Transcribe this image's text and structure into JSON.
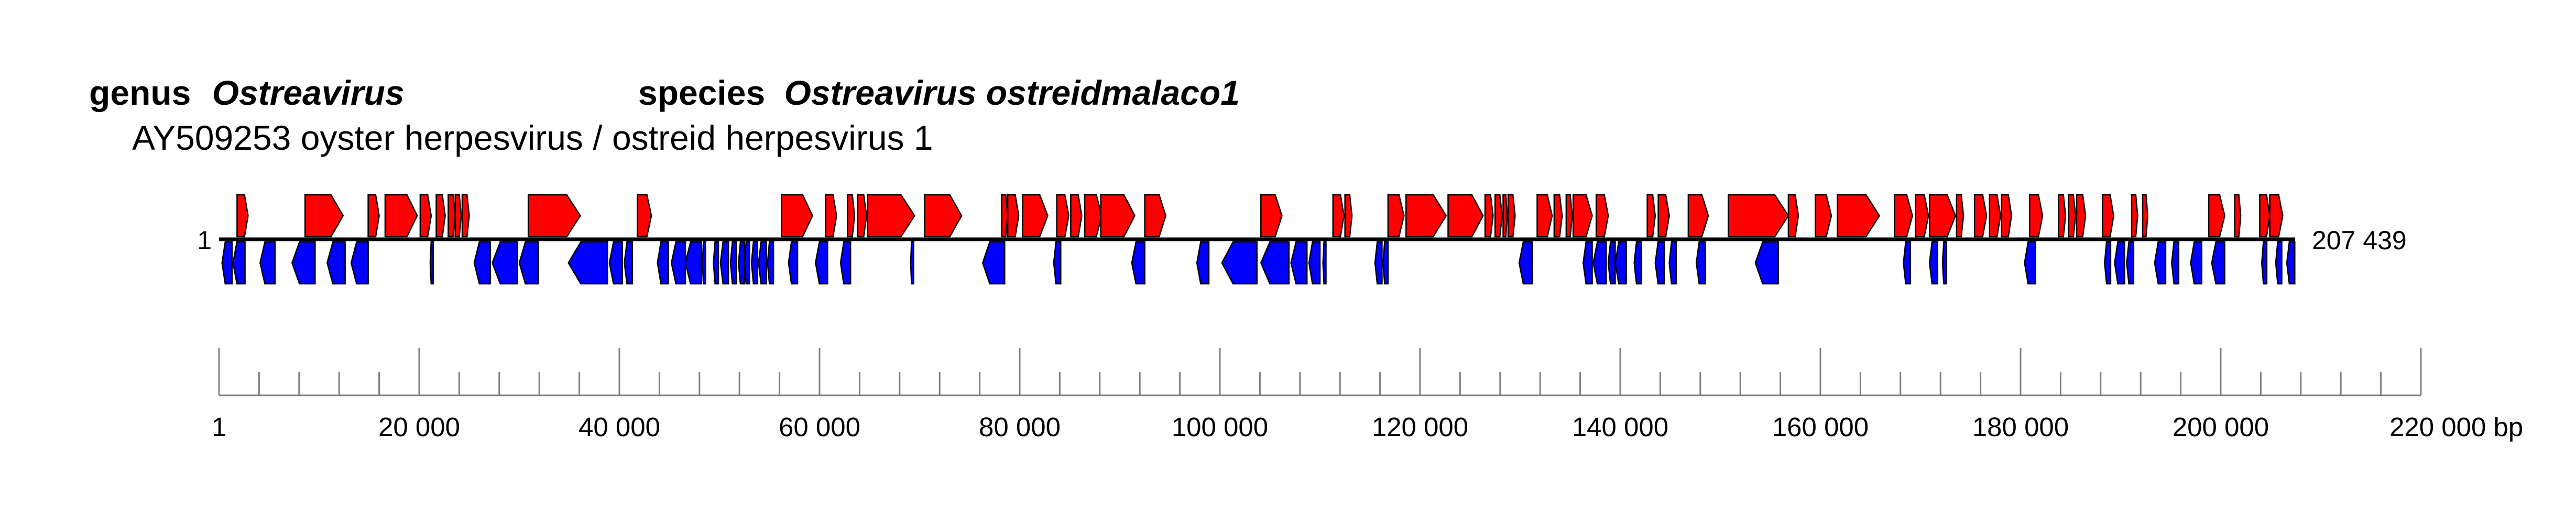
{
  "title": {
    "genus_prefix": "genus",
    "genus_name": "Ostreavirus",
    "species_prefix": "species",
    "species_name": "Ostreavirus ostreidmalaco1"
  },
  "subtitle": "AY509253 oyster herpesvirus / ostreid herpesvirus 1",
  "genome": {
    "start_label": "1",
    "end_label": "207 439",
    "length_bp": 207439
  },
  "axis": {
    "min": 1,
    "max": 220000,
    "major_step": 20000,
    "minor_step": 4000,
    "tick_labels": [
      "1",
      "20 000",
      "40 000",
      "60 000",
      "80 000",
      "100 000",
      "120 000",
      "140 000",
      "160 000",
      "180 000",
      "200 000",
      "220 000 bp"
    ]
  },
  "colors": {
    "forward_strand": "#ff0000",
    "reverse_strand": "#0000ff",
    "outline": "#000000"
  },
  "chart_data": {
    "type": "genome map",
    "strands": [
      "forward",
      "reverse"
    ],
    "forward_genes": [
      [
        1800,
        2900
      ],
      [
        8600,
        12400
      ],
      [
        14900,
        16000
      ],
      [
        16600,
        19800
      ],
      [
        20100,
        21200
      ],
      [
        21700,
        22600
      ],
      [
        22900,
        23600
      ],
      [
        23600,
        24200
      ],
      [
        24300,
        25000
      ],
      [
        30900,
        36100
      ],
      [
        41800,
        43200
      ],
      [
        56200,
        59300
      ],
      [
        60600,
        61700
      ],
      [
        62800,
        63500
      ],
      [
        63800,
        64700
      ],
      [
        64800,
        69500
      ],
      [
        70500,
        74200
      ],
      [
        78200,
        78800
      ],
      [
        78800,
        79900
      ],
      [
        80300,
        82800
      ],
      [
        83700,
        84900
      ],
      [
        85100,
        86200
      ],
      [
        86500,
        88200
      ],
      [
        88100,
        91500
      ],
      [
        92500,
        94600
      ],
      [
        104100,
        106200
      ],
      [
        111300,
        112400
      ],
      [
        112500,
        113200
      ],
      [
        116800,
        118400
      ],
      [
        118600,
        122600
      ],
      [
        122800,
        126300
      ],
      [
        126500,
        127300
      ],
      [
        127500,
        128200
      ],
      [
        128300,
        128700
      ],
      [
        128800,
        129500
      ],
      [
        131700,
        133200
      ],
      [
        133400,
        134200
      ],
      [
        134600,
        135200
      ],
      [
        135300,
        137200
      ],
      [
        137600,
        138800
      ],
      [
        142700,
        143500
      ],
      [
        143800,
        144900
      ],
      [
        146800,
        148800
      ],
      [
        150800,
        156800
      ],
      [
        156800,
        157800
      ],
      [
        159500,
        161100
      ],
      [
        161700,
        165900
      ],
      [
        167400,
        169200
      ],
      [
        169500,
        170800
      ],
      [
        170900,
        173500
      ],
      [
        173600,
        174300
      ],
      [
        175400,
        176600
      ],
      [
        176900,
        178000
      ],
      [
        178100,
        179100
      ],
      [
        180900,
        182200
      ],
      [
        183800,
        184500
      ],
      [
        184800,
        185500
      ],
      [
        185600,
        186500
      ],
      [
        188200,
        189300
      ],
      [
        191100,
        191700
      ],
      [
        192200,
        192700
      ],
      [
        198800,
        200400
      ],
      [
        201400,
        202000
      ],
      [
        203900,
        204900
      ],
      [
        204900,
        206200
      ]
    ],
    "reverse_genes": [
      [
        300,
        1300
      ],
      [
        1400,
        2600
      ],
      [
        4100,
        5600
      ],
      [
        7300,
        9600
      ],
      [
        10800,
        12600
      ],
      [
        13200,
        14900
      ],
      [
        21100,
        21400
      ],
      [
        25500,
        27100
      ],
      [
        27300,
        29800
      ],
      [
        30000,
        31900
      ],
      [
        34900,
        38800
      ],
      [
        39000,
        40300
      ],
      [
        40500,
        41300
      ],
      [
        43800,
        44900
      ],
      [
        45200,
        46600
      ],
      [
        46600,
        48200
      ],
      [
        48300,
        48600
      ],
      [
        49400,
        49900
      ],
      [
        50100,
        50900
      ],
      [
        51100,
        51700
      ],
      [
        51900,
        52500
      ],
      [
        52500,
        53000
      ],
      [
        53200,
        53800
      ],
      [
        53900,
        54700
      ],
      [
        54800,
        55400
      ],
      [
        56900,
        57800
      ],
      [
        59600,
        60800
      ],
      [
        62100,
        63100
      ],
      [
        69100,
        69400
      ],
      [
        76300,
        78500
      ],
      [
        83400,
        84100
      ],
      [
        91200,
        92500
      ],
      [
        97700,
        98900
      ],
      [
        100200,
        103700
      ],
      [
        104100,
        106900
      ],
      [
        107100,
        108700
      ],
      [
        108900,
        110000
      ],
      [
        110300,
        110600
      ],
      [
        115500,
        116200
      ],
      [
        116300,
        116800
      ],
      [
        129900,
        131200
      ],
      [
        136300,
        137200
      ],
      [
        137300,
        138600
      ],
      [
        138800,
        139500
      ],
      [
        139500,
        140600
      ],
      [
        141400,
        142100
      ],
      [
        143500,
        144400
      ],
      [
        144900,
        145600
      ],
      [
        147600,
        148500
      ],
      [
        153500,
        155800
      ],
      [
        168300,
        169000
      ],
      [
        170900,
        171700
      ],
      [
        172200,
        172600
      ],
      [
        180400,
        181500
      ],
      [
        188400,
        189000
      ],
      [
        189400,
        190400
      ],
      [
        190600,
        191300
      ],
      [
        193400,
        194500
      ],
      [
        195100,
        195800
      ],
      [
        197000,
        198100
      ],
      [
        199100,
        200400
      ],
      [
        204100,
        204600
      ],
      [
        205500,
        206100
      ],
      [
        206600,
        207400
      ]
    ]
  }
}
